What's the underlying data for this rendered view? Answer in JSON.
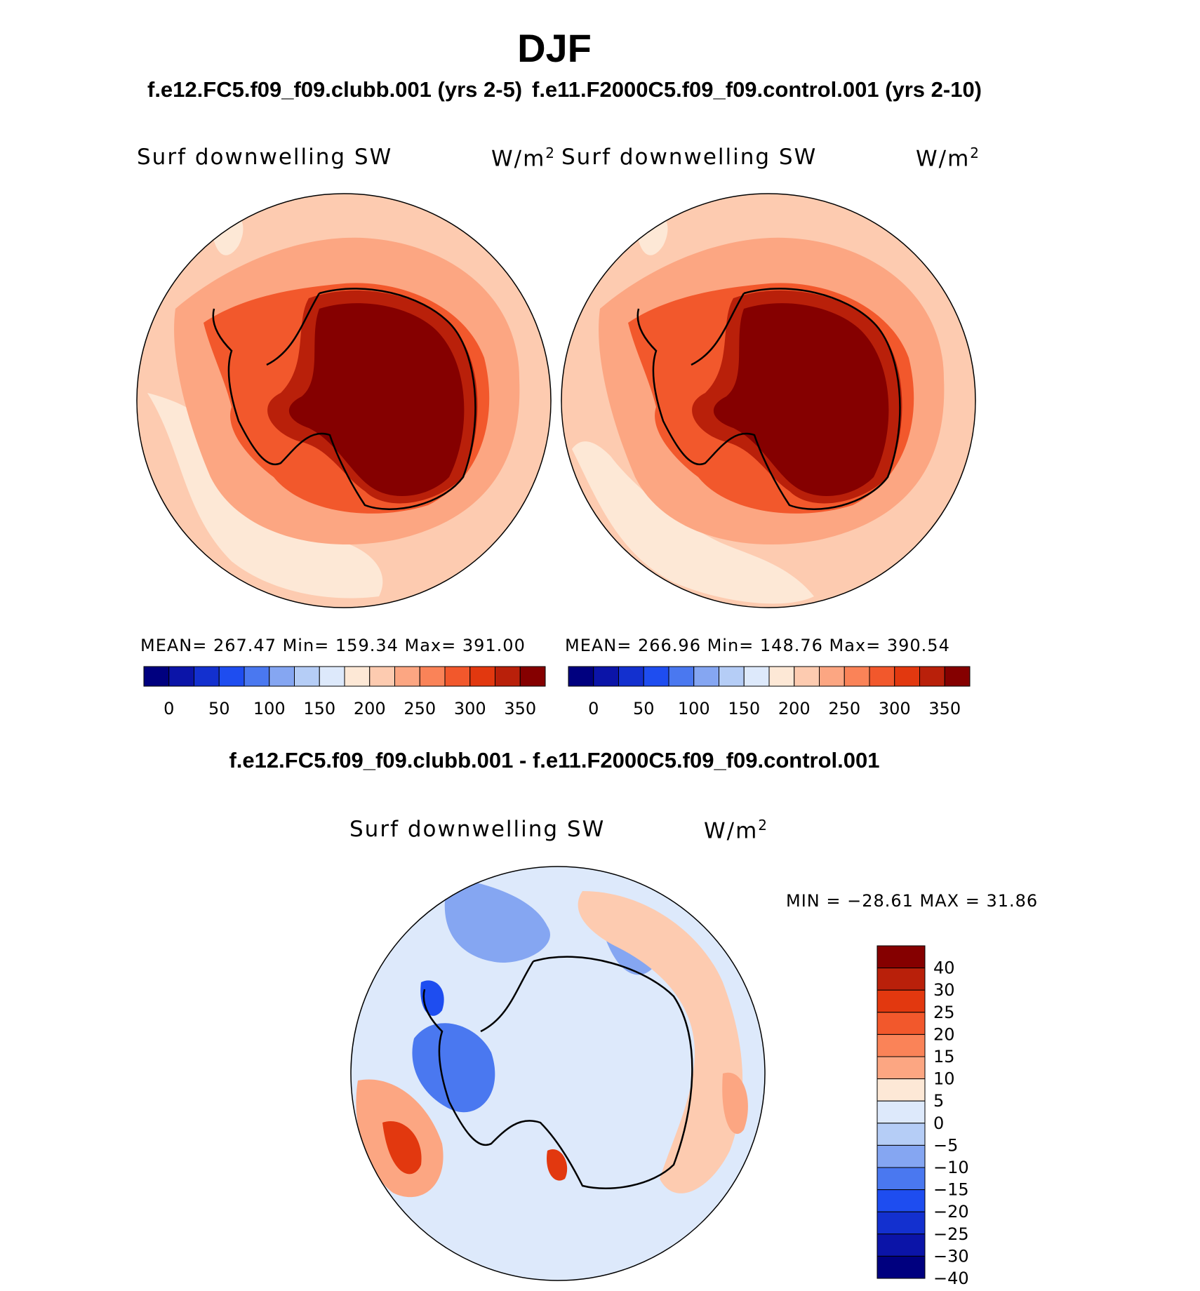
{
  "figure": {
    "season": "DJF",
    "case1_title": "f.e12.FC5.f09_f09.clubb.001 (yrs 2-5)",
    "case2_title": "f.e11.F2000C5.f09_f09.control.001 (yrs 2-10)",
    "diff_title": "f.e12.FC5.f09_f09.clubb.001 - f.e11.F2000C5.f09_f09.control.001"
  },
  "panels": [
    {
      "variable": "Surf downwelling SW",
      "units": "W/m",
      "units_exp": "2",
      "stats": "MEAN=  267.47    Min=  159.34    Max=  391.00"
    },
    {
      "variable": "Surf downwelling SW",
      "units": "W/m",
      "units_exp": "2",
      "stats": "MEAN=  266.96    Min=  148.76    Max=  390.54"
    }
  ],
  "abs_colorbar": {
    "colors": [
      "#00007f",
      "#0b14a8",
      "#1330cf",
      "#1e4df0",
      "#4a78f0",
      "#85a6f2",
      "#b5cdf6",
      "#dde9fb",
      "#fde8d6",
      "#fdcbb0",
      "#fca682",
      "#fa8358",
      "#f2582c",
      "#e2380f",
      "#b9200a",
      "#850000"
    ],
    "tick_labels": [
      "0",
      "50",
      "100",
      "150",
      "200",
      "250",
      "300",
      "350"
    ]
  },
  "diff_panel": {
    "variable": "Surf downwelling SW",
    "units": "W/m",
    "units_exp": "2",
    "minmax": "MIN  =  −28.61  MAX  =    31.86",
    "colorbar_colors": [
      "#850000",
      "#b9200a",
      "#e2380f",
      "#f2582c",
      "#fa8358",
      "#fca682",
      "#fde8d6",
      "#dde9fb",
      "#b5cdf6",
      "#85a6f2",
      "#4a78f0",
      "#1e4df0",
      "#1330cf",
      "#0b14a8",
      "#00007f"
    ],
    "colorbar_labels": [
      "40",
      "30",
      "25",
      "20",
      "15",
      "10",
      "5",
      "0",
      "−5",
      "−10",
      "−15",
      "−20",
      "−25",
      "−30",
      "−40"
    ]
  },
  "legend_colors": {
    "ocean_abs": "#fdcbb0",
    "ocean_abs_light": "#fde8d6",
    "coast_band": "#fca682",
    "inner_band": "#f2582c",
    "rim": "#b9200a",
    "interior": "#850000",
    "diff_bg": "#dde9fb",
    "diff_blue": "#85a6f2",
    "diff_warm": "#fca682",
    "diff_hot": "#e2380f"
  }
}
